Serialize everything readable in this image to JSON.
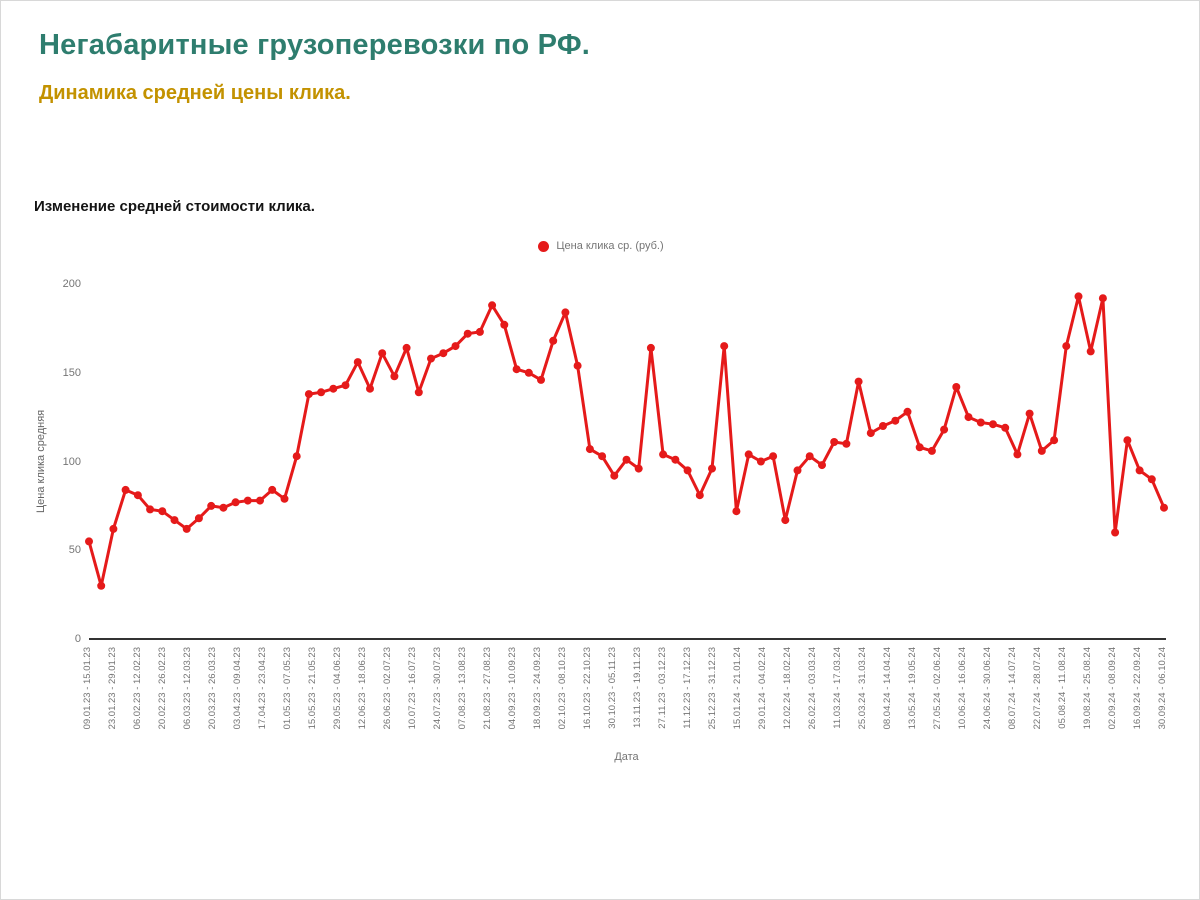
{
  "header": {
    "title": "Негабаритные грузоперевозки по РФ.",
    "subtitle": "Динамика средней цены клика."
  },
  "colors": {
    "title": "#2e7d6e",
    "subtitle": "#c39200",
    "series": "#e51a1a",
    "axis_text": "#757575",
    "axis_line": "#333333"
  },
  "chart_data": {
    "type": "line",
    "title": "Изменение средней стоимости клика.",
    "legend": [
      "Цена клика ср. (руб.)"
    ],
    "legend_position": "top-center",
    "xlabel": "Дата",
    "ylabel": "Цена клика средняя",
    "ylim": [
      0,
      200
    ],
    "yticks": [
      0,
      50,
      100,
      150,
      200
    ],
    "grid": false,
    "marker": "circle",
    "x_tick_labels": [
      "09.01.23 - 15.01.23",
      "23.01.23 - 29.01.23",
      "06.02.23 - 12.02.23",
      "20.02.23 - 26.02.23",
      "06.03.23 - 12.03.23",
      "20.03.23 - 26.03.23",
      "03.04.23 - 09.04.23",
      "17.04.23 - 23.04.23",
      "01.05.23 - 07.05.23",
      "15.05.23 - 21.05.23",
      "29.05.23 - 04.06.23",
      "12.06.23 - 18.06.23",
      "26.06.23 - 02.07.23",
      "10.07.23 - 16.07.23",
      "24.07.23 - 30.07.23",
      "07.08.23 - 13.08.23",
      "21.08.23 - 27.08.23",
      "04.09.23 - 10.09.23",
      "18.09.23 - 24.09.23",
      "02.10.23 - 08.10.23",
      "16.10.23 - 22.10.23",
      "30.10.23 - 05.11.23",
      "13.11.23 - 19.11.23",
      "27.11.23 - 03.12.23",
      "11.12.23 - 17.12.23",
      "25.12.23 - 31.12.23",
      "15.01.24 - 21.01.24",
      "29.01.24 - 04.02.24",
      "12.02.24 - 18.02.24",
      "26.02.24 - 03.03.24",
      "11.03.24 - 17.03.24",
      "25.03.24 - 31.03.24",
      "08.04.24 - 14.04.24",
      "13.05.24 - 19.05.24",
      "27.05.24 - 02.06.24",
      "10.06.24 - 16.06.24",
      "24.06.24 - 30.06.24",
      "08.07.24 - 14.07.24",
      "22.07.24 - 28.07.24",
      "05.08.24 - 11.08.24",
      "19.08.24 - 25.08.24",
      "02.09.24 - 08.09.24",
      "16.09.24 - 22.09.24",
      "30.09.24 - 06.10.24"
    ],
    "values": [
      55,
      30,
      62,
      84,
      81,
      73,
      72,
      67,
      62,
      68,
      75,
      74,
      77,
      78,
      78,
      84,
      79,
      103,
      138,
      139,
      141,
      143,
      156,
      141,
      161,
      148,
      164,
      139,
      158,
      161,
      165,
      172,
      173,
      188,
      177,
      152,
      150,
      146,
      168,
      184,
      154,
      107,
      103,
      92,
      101,
      96,
      164,
      104,
      101,
      95,
      81,
      96,
      165,
      72,
      104,
      100,
      103,
      67,
      95,
      103,
      98,
      111,
      110,
      145,
      116,
      120,
      123,
      128,
      108,
      106,
      118,
      142,
      125,
      122,
      121,
      119,
      104,
      127,
      106,
      112,
      165,
      193,
      162,
      192,
      60,
      112,
      95,
      90,
      74
    ]
  }
}
